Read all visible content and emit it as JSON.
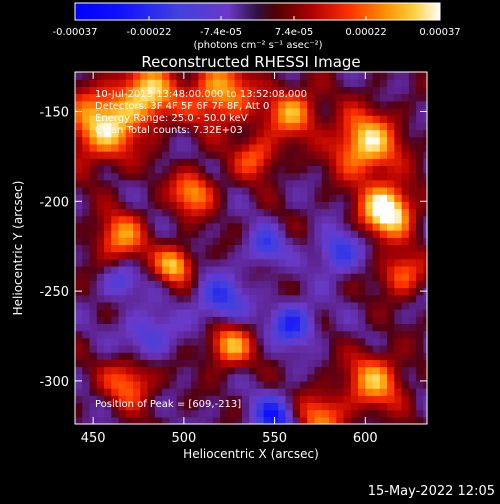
{
  "chart_data": {
    "type": "heatmap",
    "title": "Reconstructed RHESSI Image",
    "xlabel": "Heliocentric X (arcsec)",
    "ylabel": "Heliocentric Y (arcsec)",
    "xlim": [
      440,
      634
    ],
    "ylim": [
      -324,
      -128
    ],
    "x_ticks": [
      450,
      500,
      550,
      600
    ],
    "y_ticks": [
      -300,
      -250,
      -200,
      -150
    ],
    "colorbar": {
      "ticks": [
        "-0.00037",
        "-0.00022",
        "-7.4e-05",
        "7.4e-05",
        "0.00022",
        "0.00037"
      ],
      "unit_label": "(photons cm⁻² s⁻¹ asec⁻²)",
      "range": [
        -0.00037,
        0.00037
      ]
    },
    "annotations": [
      "10-Jul-2013 13:48:00.000 to 13:52:08.000",
      "Detectors: 3F 4F 5F 6F 7F 8F, Att 0",
      "Energy Range: 25.0 - 50.0 keV",
      "Clean    Total counts: 7.32E+03"
    ],
    "peak_label": "Position of Peak = [609,-213]",
    "peak": {
      "x": 609,
      "y": -213
    },
    "footer": "15-May-2022 12:05",
    "hotspots": [
      {
        "x": 612,
        "y": -205,
        "a": 1.15,
        "r": 14
      },
      {
        "x": 600,
        "y": -168,
        "a": 0.9,
        "r": 18
      },
      {
        "x": 455,
        "y": -158,
        "a": 0.85,
        "r": 20
      },
      {
        "x": 480,
        "y": -140,
        "a": 0.8,
        "r": 16
      },
      {
        "x": 520,
        "y": -140,
        "a": 0.75,
        "r": 18
      },
      {
        "x": 560,
        "y": -150,
        "a": 0.7,
        "r": 14
      },
      {
        "x": 505,
        "y": -195,
        "a": 0.7,
        "r": 12
      },
      {
        "x": 465,
        "y": -220,
        "a": 0.65,
        "r": 14
      },
      {
        "x": 495,
        "y": -235,
        "a": 0.8,
        "r": 10
      },
      {
        "x": 525,
        "y": -280,
        "a": 0.75,
        "r": 12
      },
      {
        "x": 470,
        "y": -300,
        "a": 0.6,
        "r": 14
      },
      {
        "x": 605,
        "y": -300,
        "a": 0.7,
        "r": 16
      },
      {
        "x": 575,
        "y": -320,
        "a": 0.6,
        "r": 14
      },
      {
        "x": 620,
        "y": -240,
        "a": 0.6,
        "r": 12
      },
      {
        "x": 540,
        "y": -175,
        "a": 0.55,
        "r": 12
      },
      {
        "x": 550,
        "y": -320,
        "a": -0.7,
        "r": 12
      },
      {
        "x": 560,
        "y": -268,
        "a": -0.65,
        "r": 12
      },
      {
        "x": 520,
        "y": -255,
        "a": -0.55,
        "r": 14
      },
      {
        "x": 585,
        "y": -228,
        "a": -0.55,
        "r": 12
      },
      {
        "x": 480,
        "y": -275,
        "a": -0.45,
        "r": 14
      },
      {
        "x": 545,
        "y": -225,
        "a": -0.5,
        "r": 10
      },
      {
        "x": 465,
        "y": -245,
        "a": -0.4,
        "r": 10
      }
    ]
  },
  "colors": {
    "background": "#000000",
    "text": "#ffffff"
  }
}
